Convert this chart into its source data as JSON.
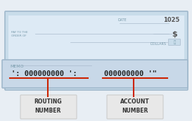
{
  "bg_color": "#e8eef4",
  "check_bg": "#dce8f0",
  "check_border": "#a0b8cc",
  "check_main_color": "#c8dcea",
  "bottom_strip_color": "#c8d8e8",
  "routing_label": "ROUTING\nNUMBER",
  "account_label": "ACCOUNT\nNUMBER",
  "arrow_color": "#cc2200",
  "label_color": "#333333",
  "micr_routing": "⚙:000000000⚙:⚙",
  "micr_account": "000000000’’",
  "check_number": "1025",
  "memo_text": "MEMO",
  "pay_to_text": "PAY TO THE\nORDER OF",
  "date_text": "DATE",
  "dollars_text": "DOLLARS"
}
